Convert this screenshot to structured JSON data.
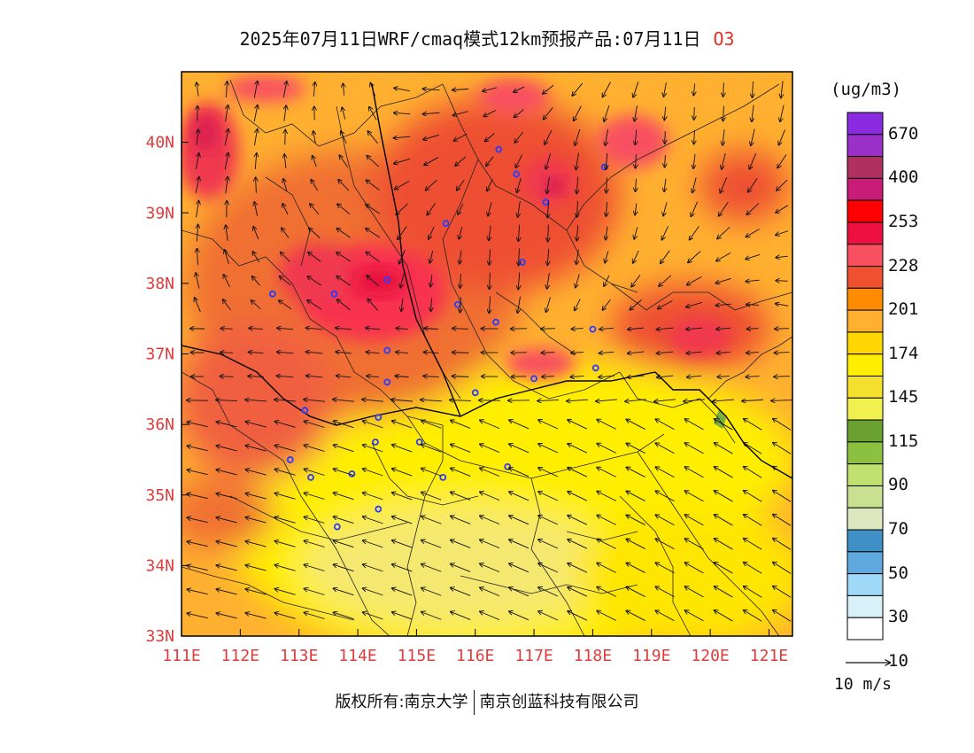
{
  "title": {
    "main": "2025年07月11日WRF/cmaq模式12km预报产品:07月11日",
    "species": "O3"
  },
  "map": {
    "lat_labels": [
      "33N",
      "34N",
      "35N",
      "36N",
      "37N",
      "38N",
      "39N",
      "40N"
    ],
    "lat_values": [
      33,
      34,
      35,
      36,
      37,
      38,
      39,
      40
    ],
    "lon_labels": [
      "111E",
      "112E",
      "113E",
      "114E",
      "115E",
      "116E",
      "117E",
      "118E",
      "119E",
      "120E",
      "121E"
    ],
    "lon_values": [
      111,
      112,
      113,
      114,
      115,
      116,
      117,
      118,
      119,
      120,
      121
    ],
    "extent": {
      "lon": [
        111,
        121.4
      ],
      "lat": [
        33,
        41
      ]
    },
    "field": "O3",
    "cities": [
      [
        116.4,
        39.9
      ],
      [
        116.7,
        39.55
      ],
      [
        117.2,
        39.15
      ],
      [
        118.2,
        39.65
      ],
      [
        115.5,
        38.85
      ],
      [
        116.8,
        38.3
      ],
      [
        114.5,
        38.05
      ],
      [
        113.6,
        37.85
      ],
      [
        112.55,
        37.85
      ],
      [
        115.7,
        37.7
      ],
      [
        116.35,
        37.45
      ],
      [
        118.0,
        37.35
      ],
      [
        114.5,
        37.05
      ],
      [
        114.5,
        36.6
      ],
      [
        116.0,
        36.45
      ],
      [
        117.0,
        36.65
      ],
      [
        118.05,
        36.8
      ],
      [
        113.1,
        36.2
      ],
      [
        114.35,
        36.1
      ],
      [
        114.3,
        35.75
      ],
      [
        115.05,
        35.75
      ],
      [
        112.85,
        35.5
      ],
      [
        113.9,
        35.3
      ],
      [
        113.2,
        35.25
      ],
      [
        115.45,
        35.25
      ],
      [
        116.55,
        35.4
      ],
      [
        114.35,
        34.8
      ],
      [
        113.65,
        34.55
      ]
    ]
  },
  "legend": {
    "unit": "(ug/m3)",
    "labels": [
      "670",
      "400",
      "253",
      "228",
      "201",
      "174",
      "145",
      "115",
      "90",
      "70",
      "50",
      "30",
      "10"
    ],
    "colors": [
      "#8a2be2",
      "#9b30c8",
      "#b03060",
      "#c81c78",
      "#ff0000",
      "#ee1040",
      "#f85060",
      "#ee5030",
      "#ff8c00",
      "#ffb030",
      "#ffd700",
      "#ffee00",
      "#f5e030",
      "#f0f050",
      "#6aa030",
      "#8cc040",
      "#c0e070",
      "#c8e090",
      "#dde8c0",
      "#4090c8",
      "#60a8e0",
      "#a0d8f8",
      "#d8f0f8",
      "#ffffff"
    ]
  },
  "wind_reference": {
    "label": "10 m/s"
  },
  "footer": {
    "left": "版权所有:南京大学",
    "right": "南京创蓝科技有限公司"
  }
}
